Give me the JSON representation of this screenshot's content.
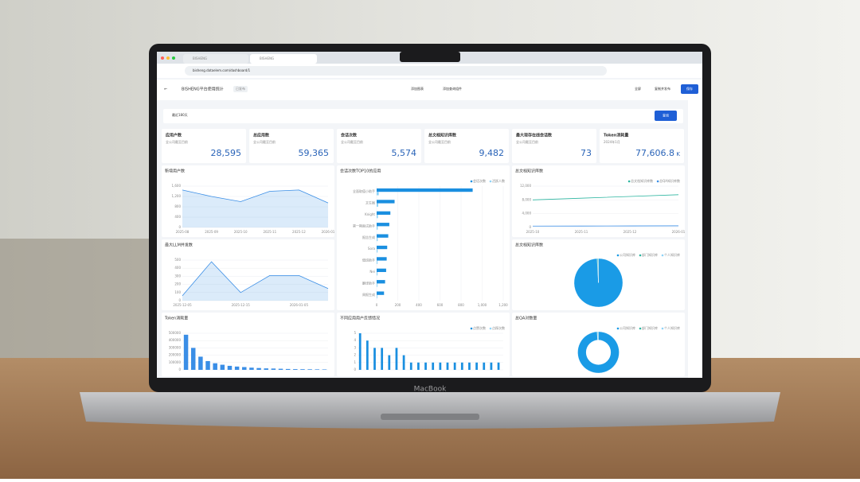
{
  "browser": {
    "tabs": [
      "BISHENG",
      "BISHENG"
    ],
    "url": "bisheng.dataelem.com/dashboard/1"
  },
  "header": {
    "title": "BISHENG平台使用统计",
    "status": "已发布",
    "actions": [
      "添加图表",
      "添加查询组件"
    ],
    "buttons": [
      "全屏",
      "复制并发布",
      "保存"
    ]
  },
  "filter": {
    "range": "最近180天",
    "button": "查询"
  },
  "kpis": [
    {
      "title": "应用户数",
      "note": "全公司截至目前",
      "value": "28,595"
    },
    {
      "title": "总应用数",
      "note": "全公司截至目前",
      "value": "59,365"
    },
    {
      "title": "会话次数",
      "note": "全公司截至目前",
      "value": "5,574"
    },
    {
      "title": "总文档知识库数",
      "note": "全公司截至目前",
      "value": "9,482"
    },
    {
      "title": "最大现存在线会话数",
      "note": "全公司截至目前",
      "value": "73"
    },
    {
      "title": "Token消耗量",
      "note": "2024年1月",
      "value": "77,606.8",
      "unit": "K"
    }
  ],
  "charts": [
    {
      "title": "新增用户数",
      "type": "line",
      "categories": [
        "2025-08",
        "2025-09",
        "2025-10",
        "2025-11",
        "2025-12",
        "2026-01"
      ],
      "series": [
        {
          "color": "#3a8ee6",
          "values": [
            1450,
            1200,
            1000,
            1400,
            1450,
            950
          ]
        }
      ],
      "ylim": [
        0,
        1600
      ],
      "yticks": [
        0,
        400,
        800,
        {
          "value": 1200,
          "label": "1,200"
        },
        {
          "value": 1600,
          "label": "1,600"
        }
      ]
    },
    {
      "title": "会话次数TOP10的应用",
      "type": "hbar",
      "categories": [
        "全面取值小助手",
        "文生图",
        "Knight",
        "第一期面试助手",
        "报告生成",
        "Sora",
        "值班助手",
        "Nei",
        "翻译助手",
        "周报生成"
      ],
      "series": [
        {
          "name": "会话次数",
          "color": "#1a8fe0",
          "values": [
            910,
            170,
            130,
            120,
            110,
            100,
            95,
            90,
            80,
            70
          ]
        },
        {
          "name": "活跃人数",
          "color": "#8fd3f7",
          "values": [
            20,
            15,
            12,
            10,
            10,
            9,
            8,
            8,
            7,
            6
          ]
        }
      ],
      "xlim": [
        0,
        1200
      ],
      "xticks": [
        0,
        200,
        400,
        600,
        800,
        {
          "value": 1000,
          "label": "1,000"
        },
        {
          "value": 1200,
          "label": "1,200"
        }
      ]
    },
    {
      "title": "总文档知识库数",
      "type": "line",
      "categories": [
        "2025-10",
        "2025-11",
        "2025-12",
        "2026-01"
      ],
      "series": [
        {
          "name": "总文档知识库数",
          "color": "#2cb5a0",
          "values": [
            8000,
            8500,
            9000,
            9500
          ]
        },
        {
          "name": "总QA知识库数",
          "color": "#3a8ee6",
          "values": [
            400,
            420,
            450,
            480
          ]
        }
      ],
      "ylim": [
        0,
        12000
      ],
      "yticks": [
        0,
        {
          "value": 4000,
          "label": "4,000"
        },
        {
          "value": 8000,
          "label": "8,000"
        },
        {
          "value": 12000,
          "label": "12,000"
        }
      ]
    },
    {
      "title": "最大LLM并发数",
      "type": "line",
      "categories": [
        "2025-12-05",
        null,
        "2025-12-15",
        null,
        "2026-01-05",
        null
      ],
      "series": [
        {
          "color": "#3a8ee6",
          "values": [
            60,
            480,
            100,
            310,
            310,
            150
          ]
        }
      ],
      "ylim": [
        0,
        500
      ],
      "yticks": [
        0,
        100,
        200,
        300,
        400,
        500
      ]
    },
    {
      "title": "总文档知识库数",
      "type": "pie",
      "categories": [
        "公司知识库",
        "部门知识库",
        "个人知识库"
      ],
      "values": [
        9400,
        52,
        30
      ],
      "colors": [
        "#1a9be6",
        "#2cb5a0",
        "#8fd3f7"
      ]
    },
    {
      "title": "Token消耗量",
      "type": "vbar",
      "categories": [
        null,
        null,
        null,
        null,
        null,
        null,
        null,
        null,
        null,
        null,
        null,
        null,
        null,
        null,
        null,
        null,
        null,
        null,
        null,
        null
      ],
      "series": [
        {
          "color": "#3a8ee6",
          "values": [
            480000,
            300000,
            180000,
            120000,
            90000,
            70000,
            55000,
            45000,
            38000,
            30000,
            25000,
            20000,
            18000,
            15000,
            12000,
            10000,
            9000,
            8000,
            7000,
            6000
          ]
        }
      ],
      "ylim": [
        0,
        500000
      ],
      "yticks": [
        0,
        100000,
        200000,
        300000,
        400000,
        500000
      ]
    },
    {
      "title": "不同应用用户反馈情况",
      "type": "vbar",
      "categories": [
        null,
        null,
        null,
        null,
        null,
        null,
        null,
        null,
        null,
        null,
        null,
        null,
        null,
        null,
        null,
        null,
        null,
        null,
        null,
        null
      ],
      "series": [
        {
          "name": "点赞次数",
          "color": "#1a8fe0",
          "values": [
            5,
            4,
            3,
            3,
            2,
            3,
            2,
            1,
            1,
            1,
            1,
            1,
            1,
            1,
            1,
            1,
            1,
            1,
            1,
            1
          ]
        },
        {
          "name": "点踩次数",
          "color": "#8fd3f7",
          "values": [
            0,
            0,
            0,
            0,
            0,
            0,
            0,
            0,
            0,
            0,
            0,
            0,
            0,
            0,
            0,
            0,
            0,
            0,
            0,
            0
          ]
        }
      ],
      "ylim": [
        0,
        5
      ],
      "yticks": [
        0,
        1,
        2,
        3,
        4,
        5
      ]
    },
    {
      "title": "总QA对数量",
      "type": "pie",
      "donut": true,
      "categories": [
        "公司知识库",
        "部门知识库",
        "个人知识库"
      ],
      "values": [
        990,
        4,
        6
      ],
      "colors": [
        "#1a9be6",
        "#2cb5a0",
        "#8fd3f7"
      ]
    }
  ],
  "device": {
    "brand": "MacBook"
  }
}
